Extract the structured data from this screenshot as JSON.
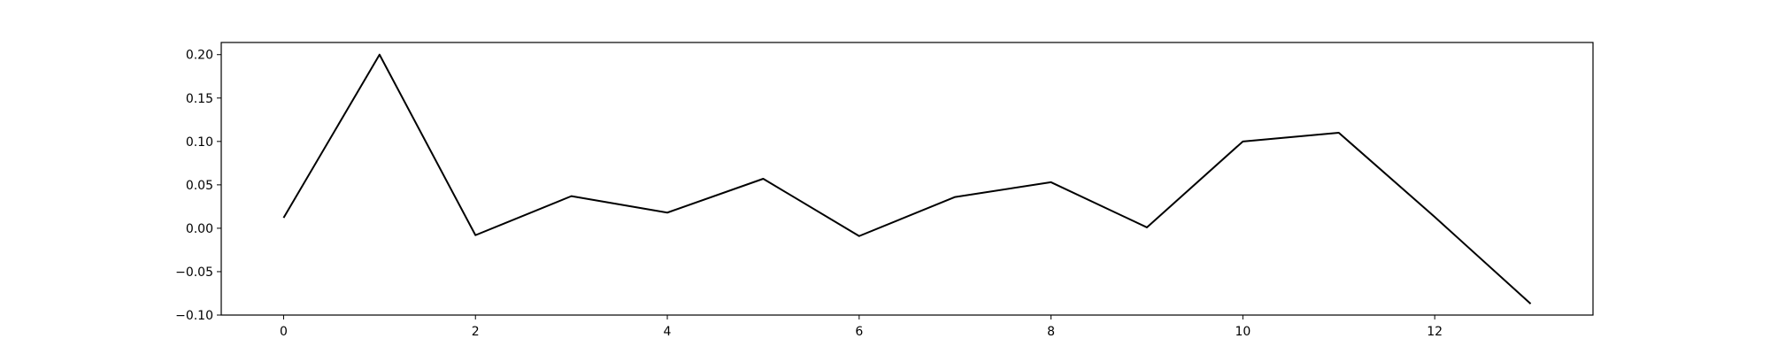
{
  "chart_data": {
    "type": "line",
    "title": "",
    "xlabel": "",
    "ylabel": "",
    "xlim": [
      -0.65,
      13.65
    ],
    "ylim": [
      -0.1,
      0.214
    ],
    "grid": false,
    "x_ticks": [
      0,
      2,
      4,
      6,
      8,
      10,
      12
    ],
    "y_ticks": [
      -0.1,
      -0.05,
      0.0,
      0.05,
      0.1,
      0.15,
      0.2
    ],
    "x_tick_labels": [
      "0",
      "2",
      "4",
      "6",
      "8",
      "10",
      "12"
    ],
    "y_tick_labels": [
      "−0.10",
      "−0.05",
      "0.00",
      "0.05",
      "0.10",
      "0.15",
      "0.20"
    ],
    "series": [
      {
        "color": "#000000",
        "x": [
          0,
          1,
          2,
          3,
          4,
          5,
          6,
          7,
          8,
          9,
          10,
          11,
          12,
          13
        ],
        "values": [
          0.012,
          0.2,
          -0.008,
          0.037,
          0.018,
          0.057,
          -0.009,
          0.036,
          0.053,
          0.001,
          0.1,
          0.11,
          0.013,
          -0.087
        ]
      }
    ]
  }
}
